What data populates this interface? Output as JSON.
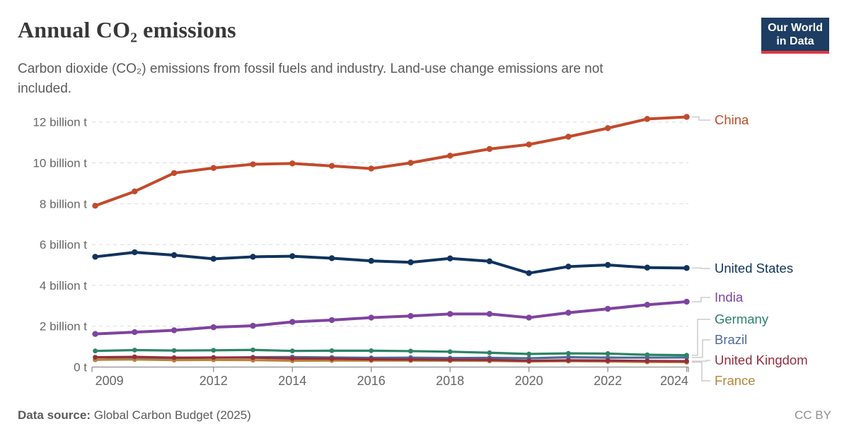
{
  "header": {
    "title": "Annual CO₂ emissions",
    "subtitle": "Carbon dioxide (CO₂) emissions from fossil fuels and industry. Land-use change emissions are not included.",
    "logo": {
      "line1": "Our World",
      "line2": "in Data",
      "bg_color": "#1d3d63",
      "bar_color": "#e0373f"
    }
  },
  "footer": {
    "source_label": "Data source:",
    "source_value": "Global Carbon Budget (2025)",
    "license": "CC BY"
  },
  "chart_data": {
    "type": "line",
    "x": [
      2009,
      2010,
      2011,
      2012,
      2013,
      2014,
      2015,
      2016,
      2017,
      2018,
      2019,
      2020,
      2021,
      2022,
      2023,
      2024
    ],
    "series": [
      {
        "name": "China",
        "color": "#c24a2b",
        "values": [
          7.9,
          8.6,
          9.5,
          9.75,
          9.93,
          9.97,
          9.85,
          9.72,
          10.0,
          10.35,
          10.68,
          10.9,
          11.28,
          11.7,
          12.15,
          12.25
        ]
      },
      {
        "name": "United States",
        "color": "#10335e",
        "values": [
          5.4,
          5.62,
          5.48,
          5.3,
          5.4,
          5.43,
          5.33,
          5.2,
          5.13,
          5.32,
          5.18,
          4.6,
          4.92,
          5.0,
          4.87,
          4.85
        ]
      },
      {
        "name": "India",
        "color": "#7e43a0",
        "values": [
          1.62,
          1.71,
          1.8,
          1.95,
          2.02,
          2.21,
          2.3,
          2.42,
          2.5,
          2.6,
          2.6,
          2.42,
          2.66,
          2.85,
          3.05,
          3.2
        ]
      },
      {
        "name": "Germany",
        "color": "#2c8465",
        "values": [
          0.79,
          0.83,
          0.81,
          0.82,
          0.84,
          0.79,
          0.8,
          0.8,
          0.78,
          0.75,
          0.7,
          0.64,
          0.67,
          0.66,
          0.6,
          0.58
        ]
      },
      {
        "name": "Brazil",
        "color": "#4c6a9c",
        "values": [
          0.36,
          0.41,
          0.43,
          0.46,
          0.48,
          0.49,
          0.47,
          0.45,
          0.46,
          0.44,
          0.45,
          0.43,
          0.48,
          0.46,
          0.46,
          0.47
        ]
      },
      {
        "name": "United Kingdom",
        "color": "#962d3e",
        "values": [
          0.48,
          0.5,
          0.46,
          0.47,
          0.46,
          0.42,
          0.41,
          0.38,
          0.37,
          0.36,
          0.35,
          0.31,
          0.33,
          0.32,
          0.3,
          0.29
        ]
      },
      {
        "name": "France",
        "color": "#ba8335",
        "values": [
          0.36,
          0.37,
          0.34,
          0.35,
          0.34,
          0.31,
          0.32,
          0.32,
          0.32,
          0.31,
          0.3,
          0.27,
          0.29,
          0.27,
          0.25,
          0.24
        ]
      }
    ],
    "y_ticks": [
      {
        "value": 0,
        "label": "0 t"
      },
      {
        "value": 2,
        "label": "2 billion t"
      },
      {
        "value": 4,
        "label": "4 billion t"
      },
      {
        "value": 6,
        "label": "6 billion t"
      },
      {
        "value": 8,
        "label": "8 billion t"
      },
      {
        "value": 10,
        "label": "10 billion t"
      },
      {
        "value": 12,
        "label": "12 billion t"
      }
    ],
    "x_ticks": [
      2009,
      2012,
      2014,
      2016,
      2018,
      2020,
      2022,
      2024
    ],
    "ylim": [
      0,
      12.6
    ],
    "xlim": [
      2009,
      2024
    ],
    "grid": "horizontal-dashed",
    "legend_position": "right-end-labels",
    "axis_text_color": "#666666",
    "grid_color": "#dadada",
    "axis_line_color": "#8f8f8f",
    "connector_color": "#cccccc"
  }
}
